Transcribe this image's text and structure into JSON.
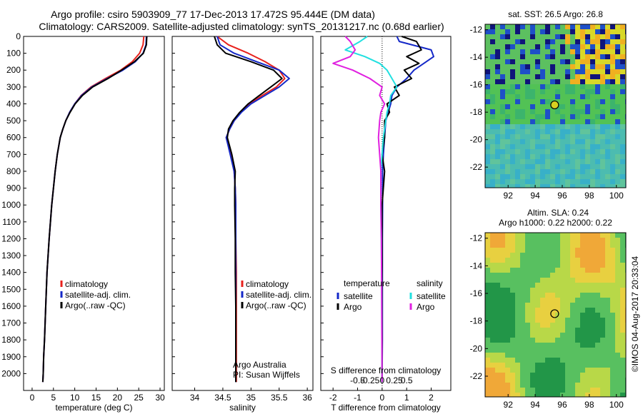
{
  "header": {
    "line1": "Argo profile: csiro 5903909_77 17-Dec-2013 17.472S 95.444E (DM data)",
    "line2": "Climatology: CARS2009. Satellite-adjusted climatology: synTS_20131217.nc (0.68d earlier)"
  },
  "colors": {
    "climatology": "#e8211c",
    "satellite": "#1428c8",
    "argo": "#000000",
    "salinity_satellite": "#22e0e0",
    "salinity_argo": "#e020e0"
  },
  "chart_data": [
    {
      "type": "line",
      "panel": "temperature",
      "xlabel": "temperature (deg C)",
      "ylabel": "",
      "xlim": [
        -2,
        31
      ],
      "ylim": [
        2100,
        0
      ],
      "xticks": [
        0,
        5,
        10,
        15,
        20,
        25,
        30
      ],
      "yticks": [
        0,
        100,
        200,
        300,
        400,
        500,
        600,
        700,
        800,
        900,
        1000,
        1100,
        1200,
        1300,
        1400,
        1500,
        1600,
        1700,
        1800,
        1900,
        2000
      ],
      "legend": [
        "climatology",
        "satellite-adj. clim.",
        "Argo(..raw -QC)"
      ],
      "series": [
        {
          "name": "climatology",
          "color": "#e8211c",
          "x": [
            26.2,
            26.0,
            25.2,
            23.5,
            20.8,
            17.2,
            13.8,
            11.5,
            10.0,
            8.8,
            7.9,
            7.2,
            6.6,
            5.9,
            5.4,
            5.0,
            4.6,
            4.0,
            3.5,
            3.2,
            2.9,
            2.7,
            2.6,
            2.5
          ],
          "y": [
            0,
            50,
            100,
            150,
            200,
            250,
            300,
            350,
            400,
            450,
            500,
            550,
            600,
            700,
            800,
            900,
            1000,
            1200,
            1400,
            1600,
            1800,
            1900,
            2000,
            2050
          ]
        },
        {
          "name": "satellite-adj. clim.",
          "color": "#1428c8",
          "x": [
            26.8,
            26.7,
            26.0,
            24.2,
            21.3,
            17.6,
            14.0,
            11.6,
            10.0,
            8.8,
            7.9,
            7.2,
            6.6,
            5.9,
            5.4,
            5.0,
            4.6,
            4.0,
            3.5,
            3.2,
            2.9,
            2.7,
            2.6,
            2.5
          ],
          "y": [
            0,
            50,
            100,
            150,
            200,
            250,
            300,
            350,
            400,
            450,
            500,
            550,
            600,
            700,
            800,
            900,
            1000,
            1200,
            1400,
            1600,
            1800,
            1900,
            2000,
            2050
          ]
        },
        {
          "name": "Argo(..raw -QC)",
          "color": "#000000",
          "x": [
            26.9,
            26.8,
            26.1,
            24.0,
            21.0,
            17.8,
            14.2,
            11.8,
            10.1,
            8.9,
            7.9,
            7.2,
            6.6,
            5.9,
            5.4,
            5.0,
            4.6,
            4.0,
            3.5,
            3.2,
            2.9,
            2.7,
            2.6,
            2.5
          ],
          "y": [
            0,
            50,
            100,
            150,
            200,
            250,
            300,
            350,
            400,
            450,
            500,
            550,
            600,
            700,
            800,
            900,
            1000,
            1200,
            1400,
            1600,
            1800,
            1900,
            2000,
            2050
          ]
        }
      ]
    },
    {
      "type": "line",
      "panel": "salinity",
      "xlabel": "salinity",
      "ylabel": "",
      "xlim": [
        33.6,
        36.1
      ],
      "ylim": [
        2100,
        0
      ],
      "xticks": [
        34,
        34.5,
        35,
        35.5,
        36
      ],
      "legend": [
        "climatology",
        "satellite-adj. clim.",
        "Argo(..raw -QC)"
      ],
      "annotations": [
        "Argo Australia",
        "PI: Susan Wijffels"
      ],
      "series": [
        {
          "name": "climatology",
          "color": "#e8211c",
          "x": [
            34.4,
            34.6,
            34.95,
            35.25,
            35.5,
            35.6,
            35.45,
            35.2,
            34.98,
            34.82,
            34.7,
            34.62,
            34.56,
            34.64,
            34.7,
            34.72,
            34.73,
            34.73,
            34.74,
            34.74,
            34.74,
            34.74,
            34.74,
            34.74
          ],
          "y": [
            0,
            50,
            100,
            150,
            200,
            250,
            300,
            350,
            400,
            450,
            500,
            550,
            600,
            700,
            800,
            900,
            1000,
            1200,
            1400,
            1600,
            1800,
            1900,
            2000,
            2050
          ]
        },
        {
          "name": "satellite-adj. clim.",
          "color": "#1428c8",
          "x": [
            34.4,
            34.45,
            34.7,
            35.1,
            35.5,
            35.68,
            35.5,
            35.25,
            35.0,
            34.83,
            34.7,
            34.62,
            34.56,
            34.63,
            34.7,
            34.72,
            34.73,
            34.73,
            34.73,
            34.73,
            34.73,
            34.73,
            34.73,
            34.73
          ],
          "y": [
            0,
            50,
            100,
            150,
            200,
            250,
            300,
            350,
            400,
            450,
            500,
            550,
            600,
            700,
            800,
            900,
            1000,
            1200,
            1400,
            1600,
            1800,
            1900,
            2000,
            2050
          ]
        },
        {
          "name": "Argo(..raw -QC)",
          "color": "#000000",
          "x": [
            34.35,
            34.4,
            34.55,
            35.0,
            35.4,
            35.55,
            35.35,
            35.15,
            34.95,
            34.8,
            34.68,
            34.6,
            34.58,
            34.66,
            34.72,
            34.71,
            34.71,
            34.72,
            34.72,
            34.73,
            34.73,
            34.73,
            34.73,
            34.73
          ],
          "y": [
            0,
            50,
            100,
            150,
            200,
            250,
            300,
            350,
            400,
            450,
            500,
            550,
            600,
            700,
            800,
            900,
            1000,
            1200,
            1400,
            1600,
            1800,
            1900,
            2000,
            2050
          ]
        }
      ]
    },
    {
      "type": "line",
      "panel": "difference",
      "xlabel": "T difference from climatology",
      "xlabel_top": "S difference from climatology",
      "xlim": [
        -2.5,
        2.8
      ],
      "ylim": [
        2100,
        0
      ],
      "xticks": [
        -2,
        -1,
        0,
        1,
        2
      ],
      "xtick_labels_top": [
        "-0.5",
        "-0.25",
        "0",
        "0.25",
        "0.5"
      ],
      "legend_titles": [
        "temperature",
        "salinity"
      ],
      "legend": [
        "satellite",
        "Argo",
        "satellite",
        "Argo"
      ],
      "series": [
        {
          "name": "satellite",
          "group": "temperature",
          "color": "#1428c8",
          "x": [
            0.6,
            0.7,
            2.0,
            2.1,
            1.7,
            1.3,
            1.0,
            0.6,
            0.4,
            0.35,
            0.25,
            0.15,
            0.1,
            0.05,
            0.02,
            0.02,
            0.01,
            0.01,
            0.01,
            0.0
          ],
          "y": [
            0,
            30,
            80,
            120,
            160,
            200,
            250,
            300,
            350,
            400,
            450,
            500,
            600,
            700,
            800,
            1000,
            1200,
            1500,
            1800,
            2050
          ]
        },
        {
          "name": "Argo",
          "group": "temperature",
          "color": "#000000",
          "x": [
            0.8,
            1.4,
            1.6,
            1.0,
            1.5,
            0.9,
            1.2,
            0.5,
            0.7,
            0.2,
            0.3,
            0.1,
            0.1,
            0.0,
            0.1,
            0.0,
            0.0,
            0.0,
            0.0,
            0.0
          ],
          "y": [
            0,
            30,
            80,
            120,
            160,
            200,
            250,
            300,
            350,
            400,
            450,
            500,
            600,
            700,
            800,
            1000,
            1200,
            1500,
            1800,
            2050
          ]
        },
        {
          "name": "satellite",
          "group": "salinity",
          "color": "#22e0e0",
          "x": [
            -0.6,
            -0.9,
            -1.5,
            -0.7,
            -0.1,
            0.2,
            0.4,
            0.6,
            0.35,
            0.3,
            0.2,
            0.15,
            0.05,
            0.0,
            -0.05,
            -0.05,
            -0.03,
            -0.02,
            -0.01,
            0.0
          ],
          "y": [
            0,
            30,
            80,
            120,
            160,
            200,
            250,
            300,
            350,
            400,
            450,
            500,
            600,
            700,
            800,
            1000,
            1200,
            1500,
            1800,
            2050
          ]
        },
        {
          "name": "Argo",
          "group": "salinity",
          "color": "#e020e0",
          "x": [
            -1.5,
            -1.3,
            -1.1,
            -1.3,
            -2.0,
            -1.2,
            -0.5,
            0.0,
            -0.1,
            0.1,
            -0.05,
            -0.1,
            -0.15,
            -0.1,
            -0.05,
            -0.05,
            -0.03,
            -0.02,
            -0.01,
            0.0
          ],
          "y": [
            0,
            30,
            80,
            120,
            160,
            200,
            250,
            300,
            350,
            400,
            450,
            500,
            600,
            700,
            800,
            1000,
            1200,
            1500,
            1800,
            2050
          ]
        }
      ]
    },
    {
      "type": "heatmap",
      "panel": "sst-map",
      "title": "sat. SST: 26.5  Argo: 26.8",
      "xlim": [
        90.3,
        100.7
      ],
      "ylim": [
        -23.5,
        -11.6
      ],
      "xticks": [
        92,
        94,
        96,
        98,
        100
      ],
      "yticks": [
        -12,
        -14,
        -16,
        -18,
        -20,
        -22
      ],
      "marker": {
        "lon": 95.44,
        "lat": -17.47
      }
    },
    {
      "type": "heatmap",
      "panel": "sla-map",
      "title": "Altim. SLA: 0.24",
      "subtitle": "Argo h1000: 0.22  h2000: 0.22",
      "xlim": [
        90.3,
        100.7
      ],
      "ylim": [
        -23.5,
        -11.6
      ],
      "xticks": [
        92,
        94,
        96,
        98,
        100
      ],
      "yticks": [
        -12,
        -14,
        -16,
        -18,
        -20,
        -22
      ],
      "marker": {
        "lon": 95.44,
        "lat": -17.47
      }
    }
  ],
  "credit": "©IMOS 04-Aug-2017 20:33:04"
}
